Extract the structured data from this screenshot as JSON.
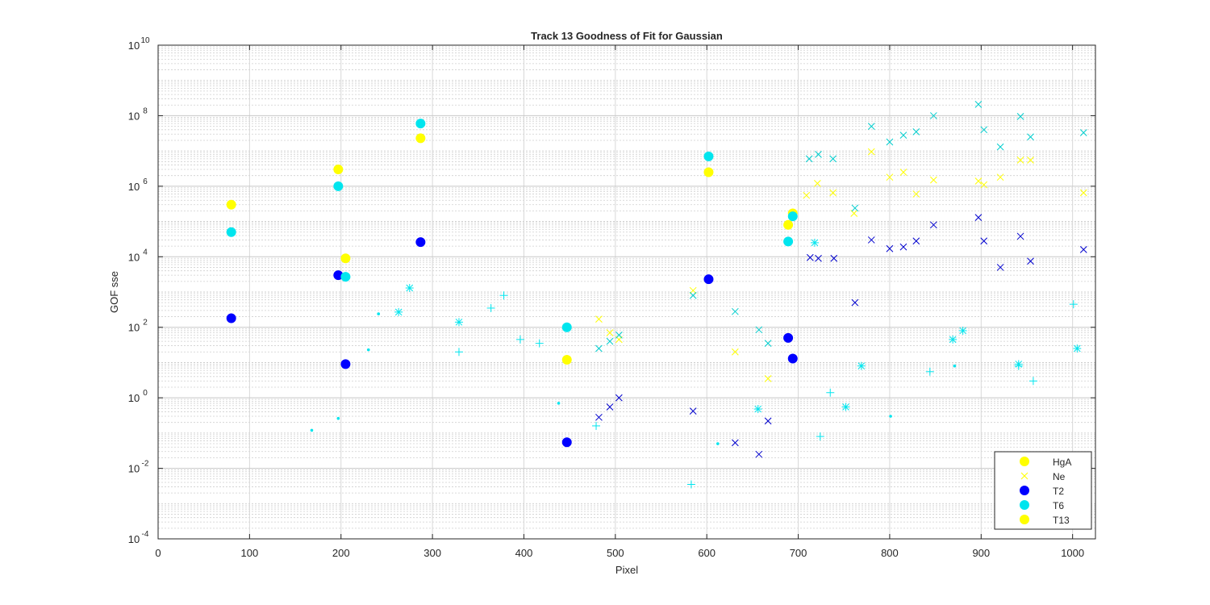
{
  "chart_data": {
    "type": "scatter",
    "title": "Track 13  Goodness of Fit for Gaussian",
    "xlabel": "Pixel",
    "ylabel": "GOF sse",
    "xlim": [
      0,
      1025
    ],
    "ylim": [
      0.0001,
      10000000000
    ],
    "yscale": "log",
    "grid": true,
    "minor_grid": true,
    "legend_placement": "bottom-right",
    "x_ticks": [
      "0",
      "100",
      "200",
      "300",
      "400",
      "500",
      "600",
      "700",
      "800",
      "900",
      "1000"
    ],
    "y_ticks": [
      {
        "base": "10",
        "exp": "-4"
      },
      {
        "base": "10",
        "exp": "-2"
      },
      {
        "base": "10",
        "exp": "0"
      },
      {
        "base": "10",
        "exp": "2"
      },
      {
        "base": "10",
        "exp": "4"
      },
      {
        "base": "10",
        "exp": "6"
      },
      {
        "base": "10",
        "exp": "8"
      },
      {
        "base": "10",
        "exp": "10"
      }
    ],
    "series": [
      {
        "name": "HgA",
        "marker": "circle",
        "color": "#ffff00",
        "in_legend": true,
        "points": [
          [
            80,
            300000
          ],
          [
            197,
            3000000
          ],
          [
            205,
            9000
          ],
          [
            287,
            23000000
          ],
          [
            447,
            12
          ],
          [
            602,
            2500000
          ],
          [
            689,
            80000
          ],
          [
            694,
            170000
          ]
        ]
      },
      {
        "name": "Ne",
        "marker": "x",
        "color": "#ffff00",
        "in_legend": true,
        "points": [
          [
            482,
            170
          ],
          [
            494,
            70
          ],
          [
            504,
            45
          ],
          [
            585,
            1100
          ],
          [
            631,
            20
          ],
          [
            667,
            3.5
          ],
          [
            709,
            550000
          ],
          [
            721,
            1200000
          ],
          [
            738,
            650000
          ],
          [
            761,
            170000
          ],
          [
            780,
            9500000
          ],
          [
            800,
            1800000
          ],
          [
            815,
            2500000
          ],
          [
            829,
            600000
          ],
          [
            848,
            1500000
          ],
          [
            897,
            1400000
          ],
          [
            903,
            1100000
          ],
          [
            921,
            1800000
          ],
          [
            943,
            5500000
          ],
          [
            954,
            5500000
          ],
          [
            1012,
            650000
          ]
        ]
      },
      {
        "name": "T2",
        "marker": "circle",
        "color": "#0000ff",
        "in_legend": true,
        "points": [
          [
            80,
            180
          ],
          [
            197,
            3000
          ],
          [
            205,
            9
          ],
          [
            287,
            26000
          ],
          [
            447,
            0.055
          ],
          [
            602,
            2300
          ],
          [
            689,
            50
          ],
          [
            694,
            13
          ]
        ]
      },
      {
        "name": "T2",
        "marker": "x",
        "color": "#0000cd",
        "in_legend": false,
        "points": [
          [
            482,
            0.28
          ],
          [
            494,
            0.55
          ],
          [
            504,
            1
          ],
          [
            585,
            0.42
          ],
          [
            631,
            0.053
          ],
          [
            657,
            0.025
          ],
          [
            667,
            0.22
          ],
          [
            713,
            9500
          ],
          [
            722,
            9000
          ],
          [
            739,
            9000
          ],
          [
            762,
            500
          ],
          [
            780,
            30000
          ],
          [
            800,
            17000
          ],
          [
            815,
            19000
          ],
          [
            829,
            28000
          ],
          [
            848,
            80000
          ],
          [
            897,
            130000
          ],
          [
            903,
            28000
          ],
          [
            921,
            5000
          ],
          [
            943,
            38000
          ],
          [
            954,
            7500
          ],
          [
            1012,
            16000
          ]
        ]
      },
      {
        "name": "T6",
        "marker": "circle",
        "color": "#00e5ee",
        "in_legend": true,
        "points": [
          [
            80,
            50000
          ],
          [
            197,
            1000000
          ],
          [
            205,
            2700
          ],
          [
            287,
            60000000
          ],
          [
            447,
            100
          ],
          [
            602,
            7000000
          ],
          [
            689,
            27000
          ],
          [
            694,
            140000
          ]
        ]
      },
      {
        "name": "T6",
        "marker": "x",
        "color": "#00cdcd",
        "in_legend": false,
        "points": [
          [
            482,
            25
          ],
          [
            494,
            40
          ],
          [
            504,
            60
          ],
          [
            585,
            800
          ],
          [
            631,
            280
          ],
          [
            657,
            85
          ],
          [
            667,
            35
          ],
          [
            712,
            6000000
          ],
          [
            722,
            8000000
          ],
          [
            738,
            6000000
          ],
          [
            762,
            240000
          ],
          [
            780,
            50000000
          ],
          [
            800,
            18000000
          ],
          [
            815,
            28000000
          ],
          [
            829,
            35000000
          ],
          [
            848,
            100000000
          ],
          [
            897,
            210000000
          ],
          [
            903,
            40000000
          ],
          [
            921,
            13000000
          ],
          [
            943,
            95000000
          ],
          [
            954,
            25000000
          ],
          [
            1012,
            33000000
          ]
        ]
      },
      {
        "name": "T6",
        "marker": "star",
        "color": "#00e5ee",
        "in_legend": false,
        "points": [
          [
            263,
            270
          ],
          [
            275,
            1300
          ],
          [
            329,
            140
          ],
          [
            656,
            0.48
          ],
          [
            718,
            25000
          ],
          [
            752,
            0.55
          ],
          [
            769,
            8
          ],
          [
            869,
            45
          ],
          [
            880,
            80
          ],
          [
            941,
            9
          ],
          [
            1005,
            25
          ]
        ]
      },
      {
        "name": "T6",
        "marker": "plus",
        "color": "#00e5ee",
        "in_legend": false,
        "points": [
          [
            329,
            20
          ],
          [
            364,
            350
          ],
          [
            378,
            800
          ],
          [
            396,
            45
          ],
          [
            417,
            35
          ],
          [
            479,
            0.16
          ],
          [
            583,
            0.0035
          ],
          [
            724,
            0.08
          ],
          [
            735,
            1.4
          ],
          [
            844,
            5.5
          ],
          [
            941,
            8
          ],
          [
            957,
            3
          ],
          [
            1001,
            450
          ]
        ]
      },
      {
        "name": "T6",
        "marker": "dot",
        "color": "#00e5ee",
        "in_legend": false,
        "points": [
          [
            168,
            0.12
          ],
          [
            197,
            0.26
          ],
          [
            230,
            23
          ],
          [
            241,
            240
          ],
          [
            438,
            0.7
          ],
          [
            612,
            0.05
          ],
          [
            801,
            0.3
          ],
          [
            871,
            8
          ]
        ]
      },
      {
        "name": "T13",
        "marker": "circle",
        "color": "#ffff00",
        "in_legend": true,
        "points": []
      }
    ]
  }
}
